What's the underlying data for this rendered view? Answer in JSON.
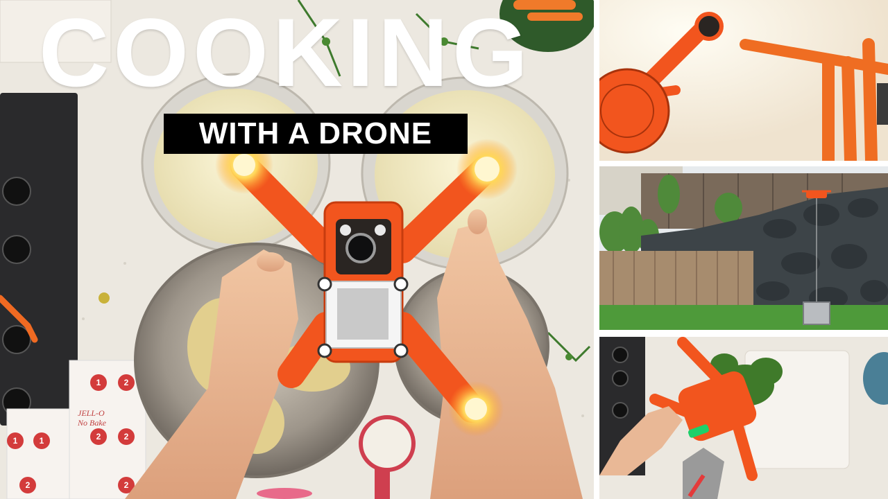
{
  "thumbnail": {
    "title_main": "COOKING",
    "title_sub": "WITH A DRONE"
  },
  "colors": {
    "drone_orange": "#f2551e",
    "counter": "#ece8e0",
    "title_text": "#ffffff",
    "subtitle_bg": "#000000"
  },
  "main_photo": {
    "packet_labels": [
      "1",
      "2",
      "2",
      "2",
      "1",
      "1",
      "2",
      "2"
    ],
    "packet_brand": "JELL-O",
    "packet_product": "No Bake"
  },
  "icons": {
    "drone": "drone-icon",
    "light": "drone-light-icon",
    "camera": "camera-lens-icon"
  }
}
